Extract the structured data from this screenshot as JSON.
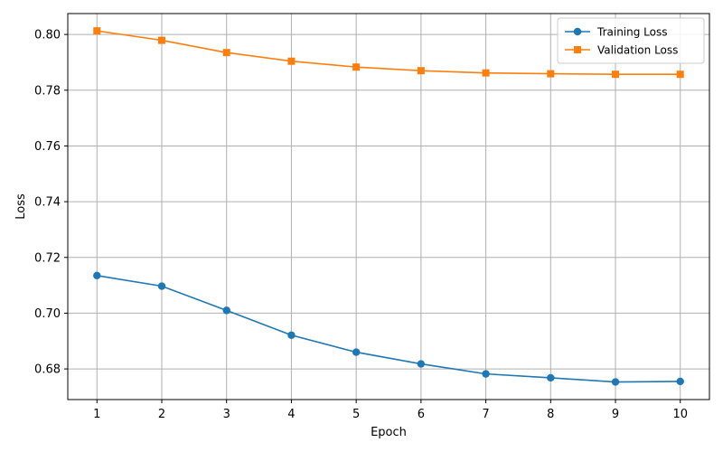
{
  "chart_data": {
    "type": "line",
    "title": "",
    "xlabel": "Epoch",
    "ylabel": "Loss",
    "x": [
      1,
      2,
      3,
      4,
      5,
      6,
      7,
      8,
      9,
      10
    ],
    "x_ticks": [
      "1",
      "2",
      "3",
      "4",
      "5",
      "6",
      "7",
      "8",
      "9",
      "10"
    ],
    "y_ticks": [
      "0.68",
      "0.70",
      "0.72",
      "0.74",
      "0.76",
      "0.78",
      "0.80"
    ],
    "xlim": [
      0.55,
      10.45
    ],
    "ylim": [
      0.669,
      0.8075
    ],
    "grid": true,
    "legend_position": "top-right",
    "series": [
      {
        "name": "Training Loss",
        "color": "#1f77b4",
        "marker": "circle",
        "values": [
          0.7135,
          0.7097,
          0.701,
          0.6921,
          0.686,
          0.6818,
          0.6782,
          0.6768,
          0.6753,
          0.6755
        ]
      },
      {
        "name": "Validation Loss",
        "color": "#ff7f0e",
        "marker": "square",
        "values": [
          0.8013,
          0.7979,
          0.7935,
          0.7904,
          0.7883,
          0.787,
          0.7862,
          0.7859,
          0.7857,
          0.7857
        ]
      }
    ]
  }
}
